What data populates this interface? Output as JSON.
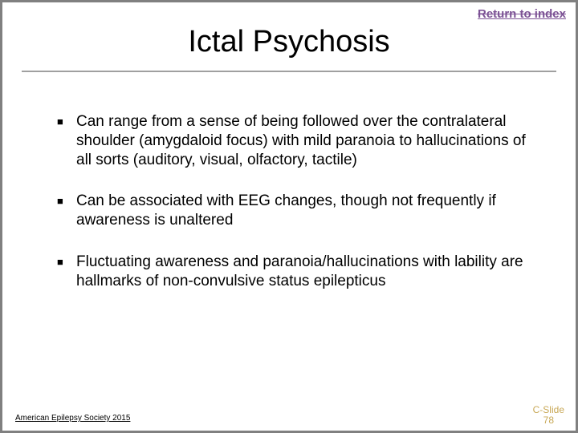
{
  "header": {
    "return_link": "Return to index"
  },
  "title": "Ictal Psychosis",
  "bullets": [
    "Can range from a sense of being followed over the contralateral shoulder (amygdaloid focus) with mild paranoia to hallucinations of all sorts (auditory, visual, olfactory, tactile)",
    "Can be associated with EEG changes, though not frequently if awareness is unaltered",
    "Fluctuating awareness and paranoia/hallucinations with lability are hallmarks of non-convulsive status epilepticus"
  ],
  "footer": {
    "left": "American Epilepsy Society 2015",
    "right_line1": "C-Slide",
    "right_line2": "78"
  },
  "styling": {
    "border_color": "#808080",
    "divider_color": "#a0a0a0",
    "link_color": "#7c5295",
    "footer_right_color": "#c8a856",
    "title_fontsize": 38,
    "bullet_fontsize": 19
  }
}
